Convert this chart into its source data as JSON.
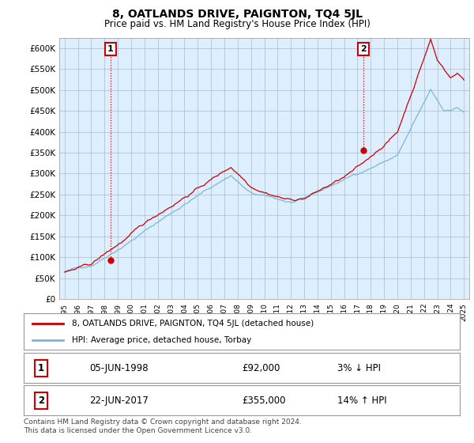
{
  "title": "8, OATLANDS DRIVE, PAIGNTON, TQ4 5JL",
  "subtitle": "Price paid vs. HM Land Registry's House Price Index (HPI)",
  "x_start_year": 1995,
  "x_end_year": 2025,
  "ylim": [
    0,
    625000
  ],
  "yticks": [
    0,
    50000,
    100000,
    150000,
    200000,
    250000,
    300000,
    350000,
    400000,
    450000,
    500000,
    550000,
    600000
  ],
  "ytick_labels": [
    "£0",
    "£50K",
    "£100K",
    "£150K",
    "£200K",
    "£250K",
    "£300K",
    "£350K",
    "£400K",
    "£450K",
    "£500K",
    "£550K",
    "£600K"
  ],
  "hpi_color": "#7ab8d9",
  "price_color": "#cc0000",
  "marker_color": "#cc0000",
  "purchase1_year": 1998.44,
  "purchase1_price": 92000,
  "purchase1_label": "1",
  "purchase2_year": 2017.47,
  "purchase2_price": 355000,
  "purchase2_label": "2",
  "legend_line1": "8, OATLANDS DRIVE, PAIGNTON, TQ4 5JL (detached house)",
  "legend_line2": "HPI: Average price, detached house, Torbay",
  "table_row1_num": "1",
  "table_row1_date": "05-JUN-1998",
  "table_row1_price": "£92,000",
  "table_row1_hpi": "3% ↓ HPI",
  "table_row2_num": "2",
  "table_row2_date": "22-JUN-2017",
  "table_row2_price": "£355,000",
  "table_row2_hpi": "14% ↑ HPI",
  "footnote": "Contains HM Land Registry data © Crown copyright and database right 2024.\nThis data is licensed under the Open Government Licence v3.0.",
  "bg_color": "#ffffff",
  "chart_bg_color": "#ddeeff",
  "grid_color": "#aabbcc",
  "box_color": "#cc0000"
}
